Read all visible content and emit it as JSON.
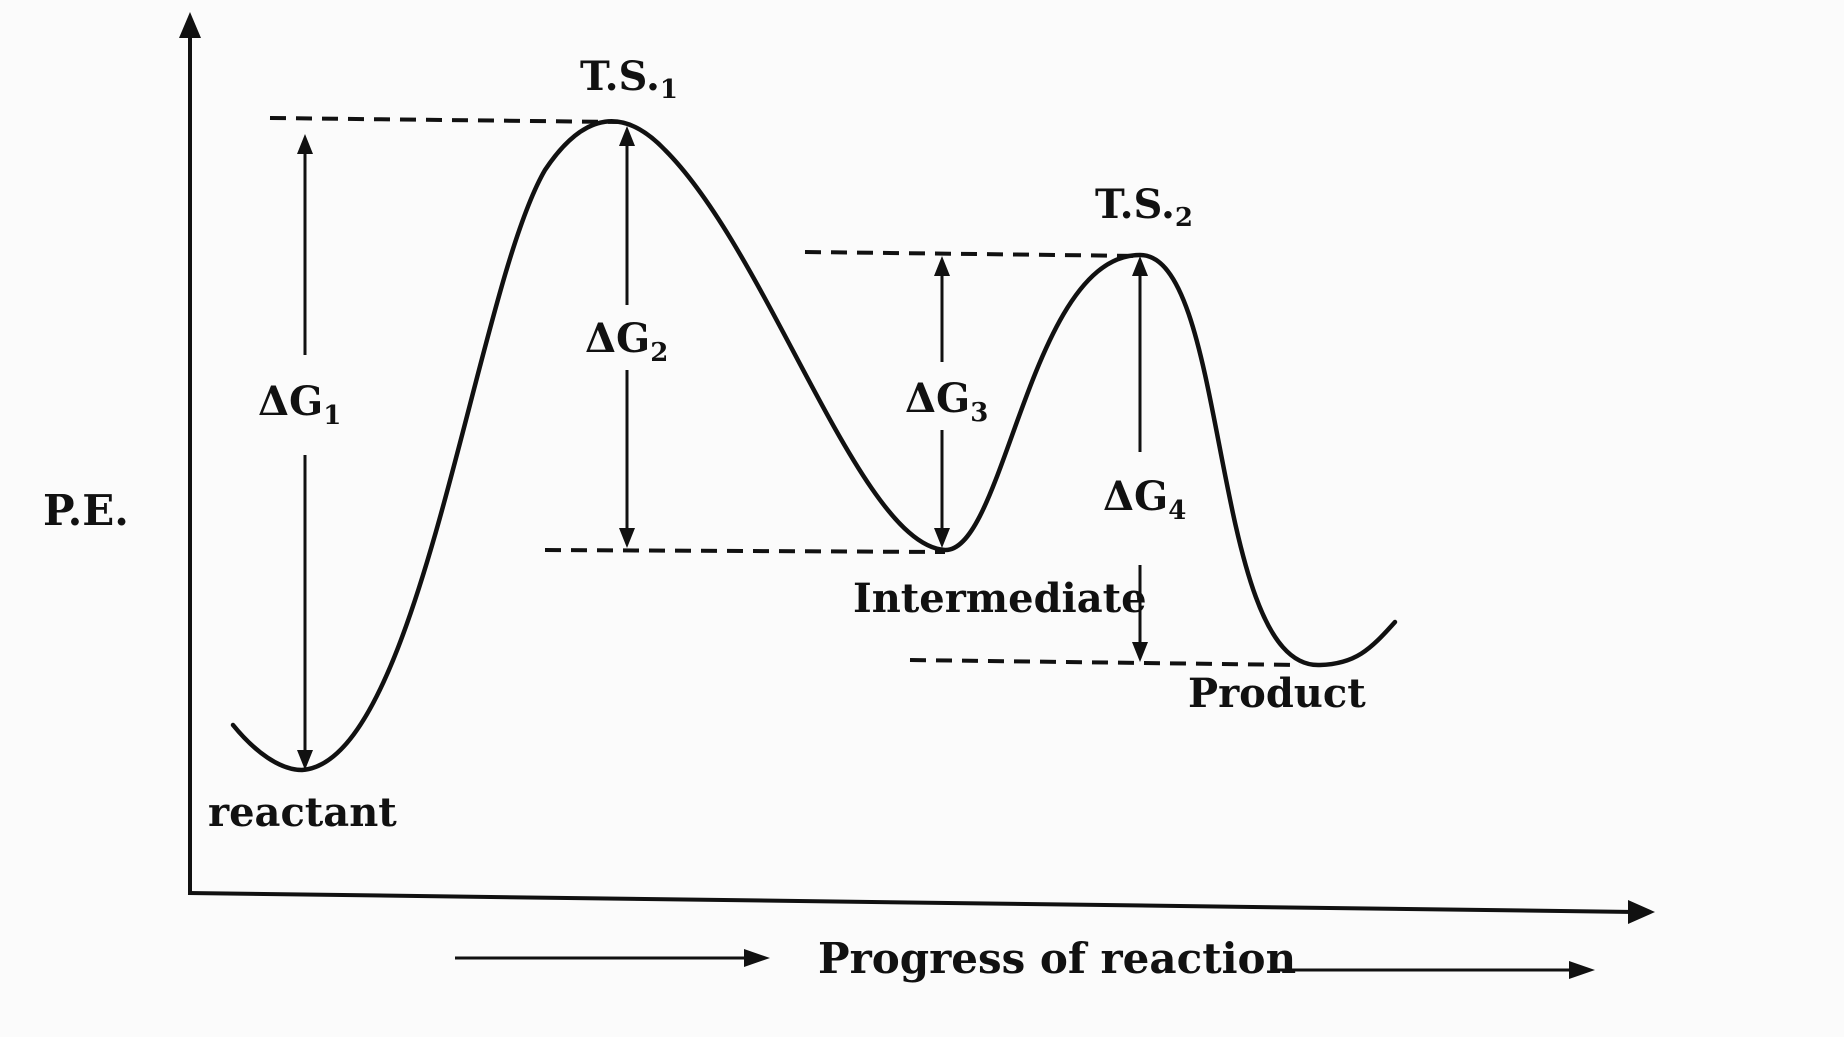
{
  "axes": {
    "y_label": "P.E.",
    "x_label": "Progress of reaction"
  },
  "states": {
    "ts1": {
      "label": "T.S.",
      "subscript": "1"
    },
    "ts2": {
      "label": "T.S.",
      "subscript": "2"
    },
    "intermediate": "Intermediate",
    "product": "Product",
    "reactant": "reactant"
  },
  "energies": {
    "dg1": {
      "label": "ΔG",
      "subscript": "1"
    },
    "dg2": {
      "label": "ΔG",
      "subscript": "2"
    },
    "dg3": {
      "label": "ΔG",
      "subscript": "3"
    },
    "dg4": {
      "label": "ΔG",
      "subscript": "4"
    }
  }
}
